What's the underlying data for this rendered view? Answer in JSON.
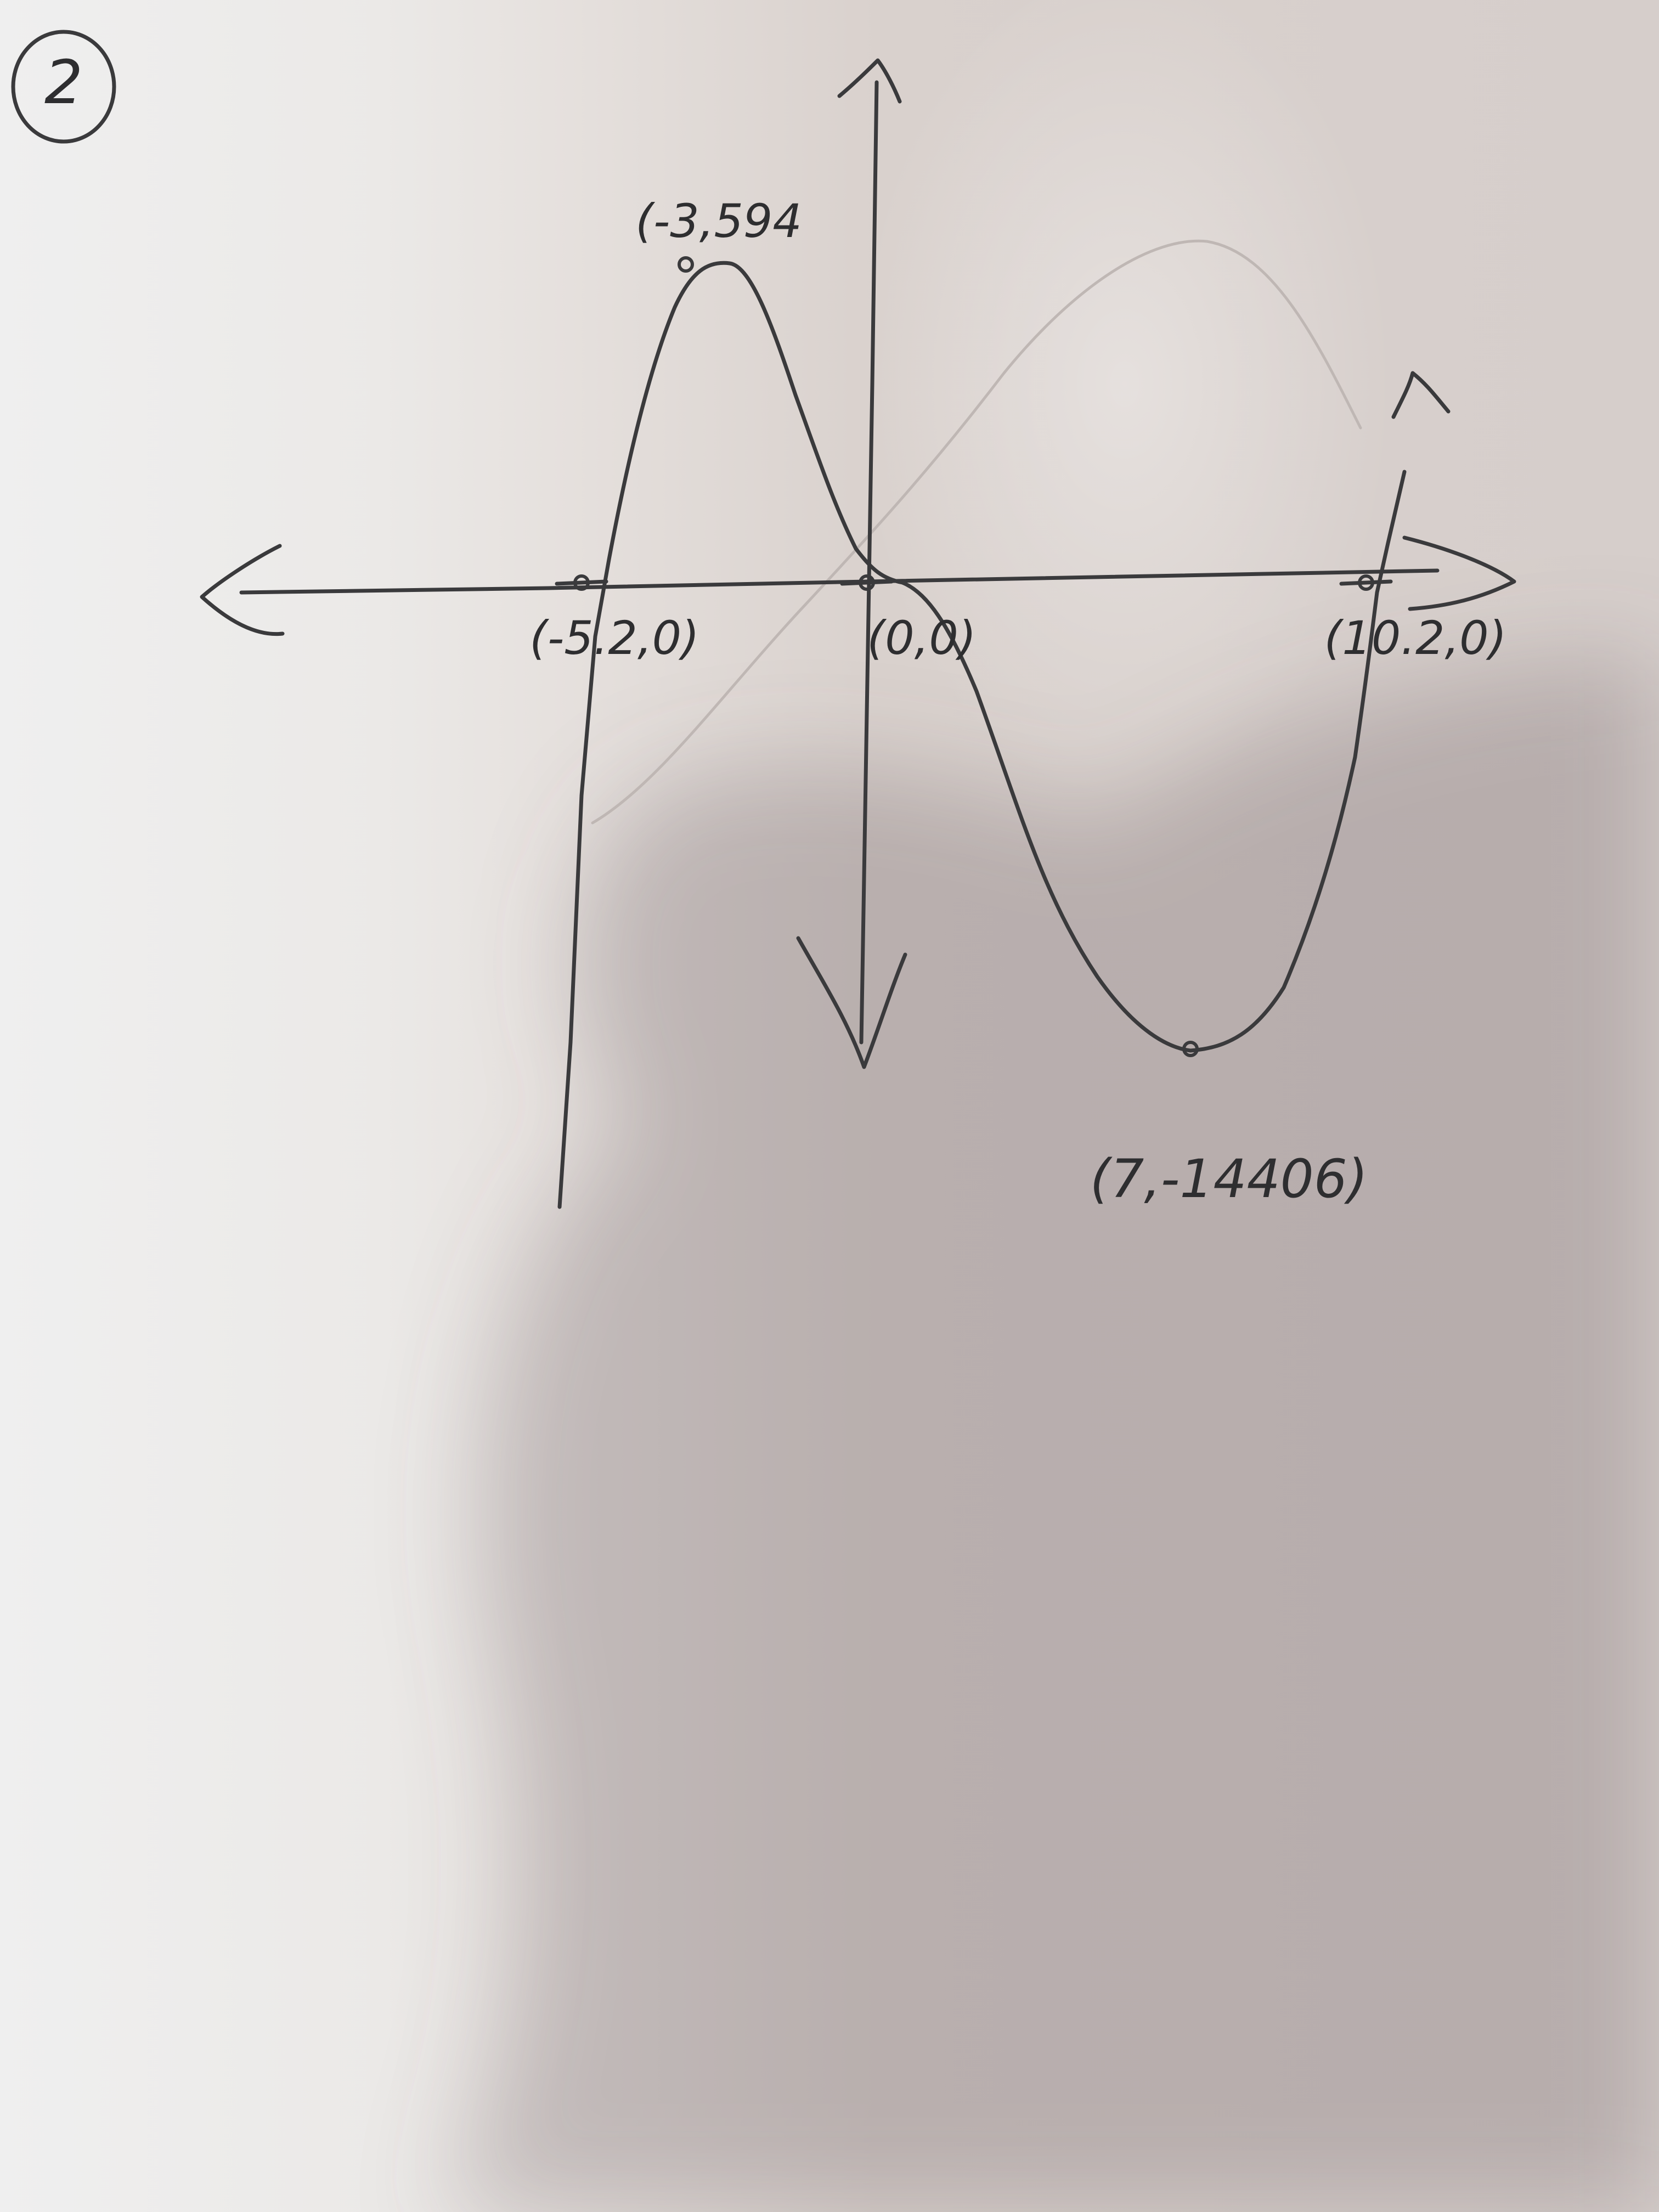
{
  "page": {
    "problem_number": "2",
    "ink_color": "#3a3a3c",
    "paper_color": "#eceae8"
  },
  "chart_data": {
    "type": "line",
    "title": "",
    "xlabel": "",
    "ylabel": "",
    "hand_drawn": true,
    "grid": false,
    "points": [
      {
        "name": "x-intercept-left",
        "label": "(-5.2,0)",
        "x": -5.2,
        "y": 0
      },
      {
        "name": "local-max",
        "label": "(-3,594",
        "x": -3,
        "y": 594
      },
      {
        "name": "origin-intercept",
        "label": "(0,0)",
        "x": 0,
        "y": 0
      },
      {
        "name": "local-min",
        "label": "(7,-14406)",
        "x": 7,
        "y": -14406
      },
      {
        "name": "x-intercept-right",
        "label": "(10.2,0)",
        "x": 10.2,
        "y": 0
      }
    ],
    "series": [
      {
        "values": [
          {
            "x": -5.2,
            "y": 0
          },
          {
            "x": -3,
            "y": 594
          },
          {
            "x": 0,
            "y": 0
          },
          {
            "x": 7,
            "y": -14406
          },
          {
            "x": 10.2,
            "y": 0
          }
        ]
      }
    ]
  }
}
